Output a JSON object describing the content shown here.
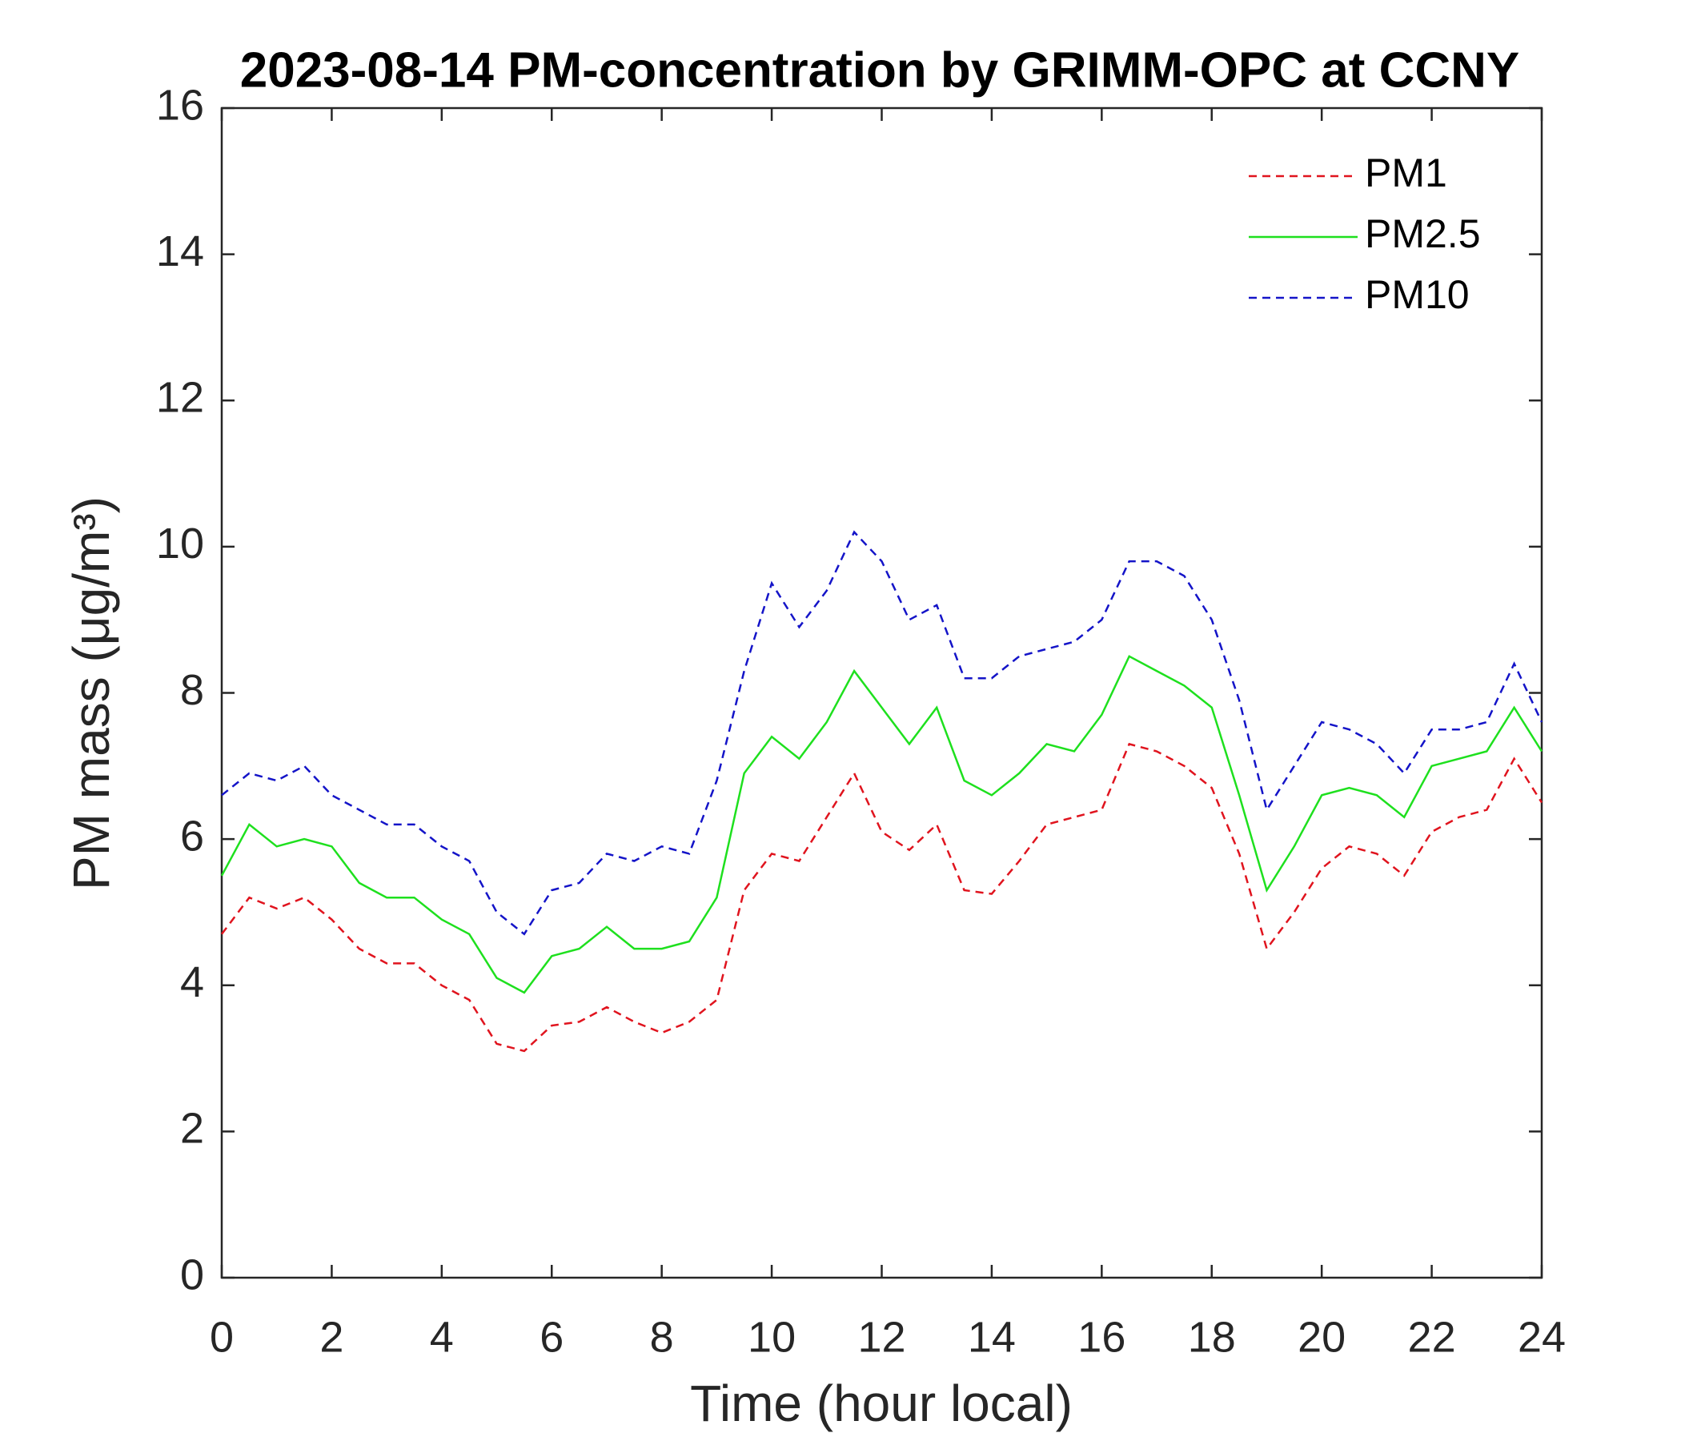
{
  "chart_data": {
    "type": "line",
    "title": "2023-08-14 PM-concentration by GRIMM-OPC at CCNY",
    "xlabel": "Time (hour local)",
    "ylabel": "PM mass (μg/m³)",
    "x": [
      0,
      0.5,
      1,
      1.5,
      2,
      2.5,
      3,
      3.5,
      4,
      4.5,
      5,
      5.5,
      6,
      6.5,
      7,
      7.5,
      8,
      8.5,
      9,
      9.5,
      10,
      10.5,
      11,
      11.5,
      12,
      12.5,
      13,
      13.5,
      14,
      14.5,
      15,
      15.5,
      16,
      16.5,
      17,
      17.5,
      18,
      18.5,
      19,
      19.5,
      20,
      20.5,
      21,
      21.5,
      22,
      22.5,
      23,
      23.5,
      24
    ],
    "series": [
      {
        "name": "PM1",
        "color": "#e0141e",
        "linestyle": "dashed",
        "values": [
          4.7,
          5.2,
          5.05,
          5.2,
          4.9,
          4.5,
          4.3,
          4.3,
          4.0,
          3.8,
          3.2,
          3.1,
          3.45,
          3.5,
          3.7,
          3.5,
          3.35,
          3.5,
          3.8,
          5.3,
          5.8,
          5.7,
          6.3,
          6.9,
          6.1,
          5.85,
          6.2,
          5.3,
          5.25,
          5.7,
          6.2,
          6.3,
          6.4,
          7.3,
          7.2,
          7.0,
          6.7,
          5.8,
          4.5,
          5.0,
          5.6,
          5.9,
          5.8,
          5.5,
          6.1,
          6.3,
          6.4,
          7.1,
          6.5
        ]
      },
      {
        "name": "PM2.5",
        "color": "#1ee01e",
        "linestyle": "solid",
        "values": [
          5.5,
          6.2,
          5.9,
          6.0,
          5.9,
          5.4,
          5.2,
          5.2,
          4.9,
          4.7,
          4.1,
          3.9,
          4.4,
          4.5,
          4.8,
          4.5,
          4.5,
          4.6,
          5.2,
          6.9,
          7.4,
          7.1,
          7.6,
          8.3,
          7.8,
          7.3,
          7.8,
          6.8,
          6.6,
          6.9,
          7.3,
          7.2,
          7.7,
          8.5,
          8.3,
          8.1,
          7.8,
          6.6,
          5.3,
          5.9,
          6.6,
          6.7,
          6.6,
          6.3,
          7.0,
          7.1,
          7.2,
          7.8,
          7.2
        ]
      },
      {
        "name": "PM10",
        "color": "#1414c8",
        "linestyle": "dashed",
        "values": [
          6.6,
          6.9,
          6.8,
          7.0,
          6.6,
          6.4,
          6.2,
          6.2,
          5.9,
          5.7,
          5.0,
          4.7,
          5.3,
          5.4,
          5.8,
          5.7,
          5.9,
          5.8,
          6.8,
          8.3,
          9.5,
          8.9,
          9.4,
          10.2,
          9.8,
          9.0,
          9.2,
          8.2,
          8.2,
          8.5,
          8.6,
          8.7,
          9.0,
          9.8,
          9.8,
          9.6,
          9.0,
          7.9,
          6.4,
          7.0,
          7.6,
          7.5,
          7.3,
          6.9,
          7.5,
          7.5,
          7.6,
          8.4,
          7.6
        ]
      }
    ],
    "xlim": [
      0,
      24
    ],
    "xticks": [
      0,
      2,
      4,
      6,
      8,
      10,
      12,
      14,
      16,
      18,
      20,
      22,
      24
    ],
    "ylim": [
      0,
      16
    ],
    "yticks": [
      0,
      2,
      4,
      6,
      8,
      10,
      12,
      14,
      16
    ],
    "legend": "upper right",
    "grid": false
  }
}
